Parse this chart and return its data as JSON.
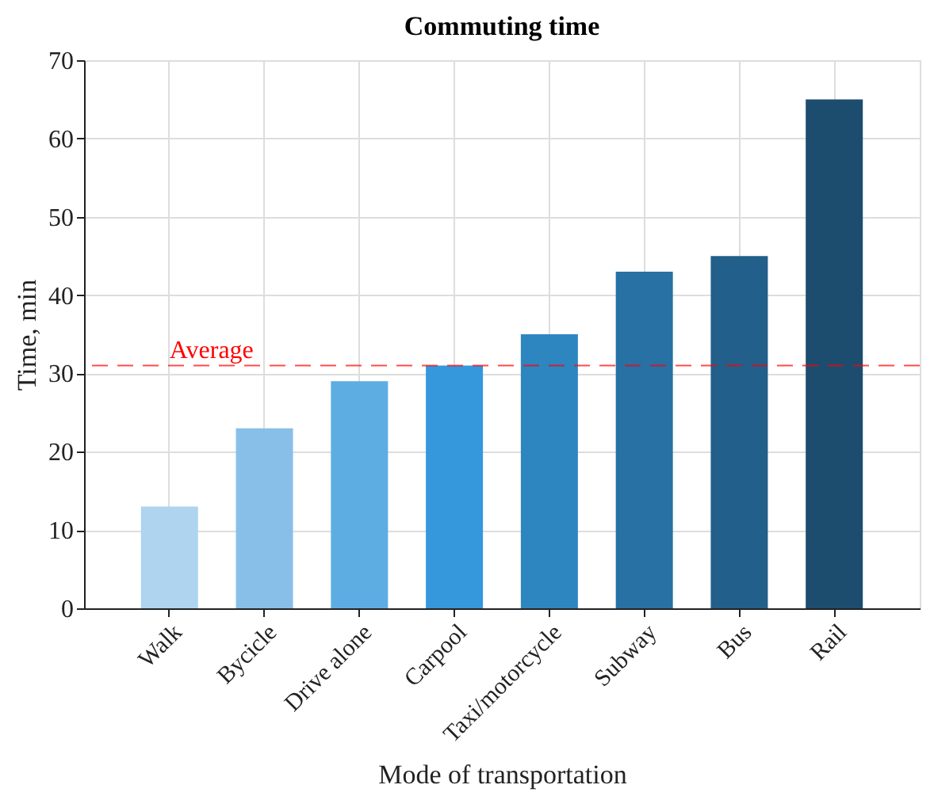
{
  "chart_data": {
    "type": "bar",
    "title": "Commuting time",
    "xlabel": "Mode of transportation",
    "ylabel": "Time, min",
    "categories": [
      "Walk",
      "Bycicle",
      "Drive alone",
      "Carpool",
      "Taxi/motorcycle",
      "Subway",
      "Bus",
      "Rail"
    ],
    "values": [
      13,
      23,
      29,
      31,
      35,
      43,
      45,
      65
    ],
    "colors": [
      "#aed4f0",
      "#87bfe8",
      "#5eade2",
      "#3598dc",
      "#2e86c1",
      "#2771a5",
      "#225f8a",
      "#1c4d6e"
    ],
    "ylim": [
      0,
      70
    ],
    "yticks": [
      0,
      10,
      20,
      30,
      40,
      50,
      60,
      70
    ],
    "grid": true,
    "ref_lines": [
      {
        "axis": "y",
        "value": 31,
        "label": "Average",
        "color": "#ff0000",
        "line_style": "dashed"
      }
    ]
  }
}
